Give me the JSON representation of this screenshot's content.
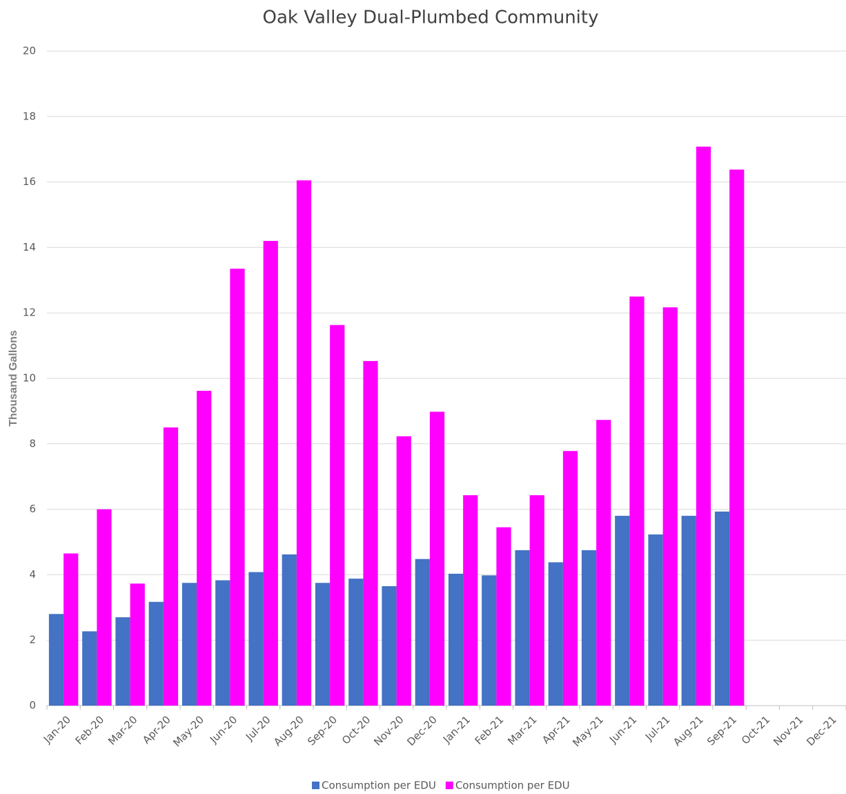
{
  "chart_data": {
    "type": "bar",
    "title": "Oak Valley Dual-Plumbed Community",
    "y_label": "Thousand Gallons",
    "categories": [
      "Jan-20",
      "Feb-20",
      "Mar-20",
      "Apr-20",
      "May-20",
      "Jun-20",
      "Jul-20",
      "Aug-20",
      "Sep-20",
      "Oct-20",
      "Nov-20",
      "Dec-20",
      "Jan-21",
      "Feb-21",
      "Mar-21",
      "Apr-21",
      "May-21",
      "Jun-21",
      "Jul-21",
      "Aug-21",
      "Sep-21",
      "Oct-21",
      "Nov-21",
      "Dec-21"
    ],
    "series": [
      {
        "name": "Consumption per EDU",
        "color": "#4472c4",
        "values": [
          2.8,
          2.27,
          2.7,
          3.17,
          3.75,
          3.83,
          4.08,
          4.62,
          3.75,
          3.88,
          3.65,
          4.48,
          4.03,
          3.98,
          4.75,
          4.38,
          4.75,
          5.8,
          5.23,
          5.8,
          5.93,
          null,
          null,
          null
        ]
      },
      {
        "name": "Consumption per EDU",
        "color": "#ff00ff",
        "values": [
          4.65,
          6.0,
          3.73,
          8.5,
          9.62,
          13.35,
          14.2,
          16.05,
          11.63,
          10.53,
          8.23,
          8.98,
          6.43,
          5.45,
          6.43,
          7.78,
          8.73,
          12.5,
          12.17,
          17.08,
          16.38,
          null,
          null,
          null
        ]
      }
    ],
    "ylim": [
      0,
      20
    ],
    "yticks": [
      0,
      2,
      4,
      6,
      8,
      10,
      12,
      14,
      16,
      18,
      20
    ],
    "grid": true,
    "legend": "bottom"
  }
}
